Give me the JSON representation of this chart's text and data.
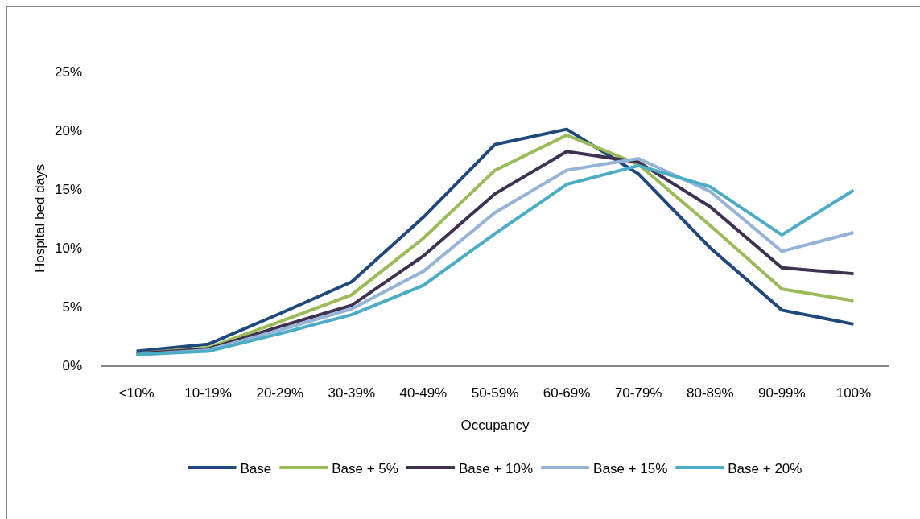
{
  "chart_data": {
    "type": "line",
    "xlabel": "Occupancy",
    "ylabel": "Hospital bed days",
    "categories": [
      "<10%",
      "10-19%",
      "20-29%",
      "30-39%",
      "40-49%",
      "50-59%",
      "60-69%",
      "70-79%",
      "80-89%",
      "90-99%",
      "100%"
    ],
    "series": [
      {
        "name": "Base",
        "color": "#1f497d",
        "values": [
          1.2,
          1.8,
          4.4,
          7.1,
          12.6,
          18.8,
          20.1,
          16.3,
          10.0,
          4.7,
          3.5
        ]
      },
      {
        "name": "Base + 5%",
        "color": "#9bbb59",
        "values": [
          1.0,
          1.5,
          3.7,
          6.0,
          10.8,
          16.6,
          19.6,
          17.1,
          11.9,
          6.5,
          5.5
        ]
      },
      {
        "name": "Base + 10%",
        "color": "#3f3151",
        "values": [
          1.0,
          1.4,
          3.3,
          5.1,
          9.3,
          14.6,
          18.2,
          17.3,
          13.5,
          8.3,
          7.8
        ]
      },
      {
        "name": "Base + 15%",
        "color": "#95b3d7",
        "values": [
          0.9,
          1.3,
          3.0,
          4.8,
          8.0,
          13.0,
          16.6,
          17.6,
          14.8,
          9.7,
          11.3
        ]
      },
      {
        "name": "Base + 20%",
        "color": "#4bacc6",
        "values": [
          0.9,
          1.2,
          2.7,
          4.3,
          6.8,
          11.2,
          15.4,
          17.0,
          15.2,
          11.1,
          14.9
        ]
      }
    ],
    "ylim": [
      0,
      25
    ],
    "yticks": [
      {
        "value": 0,
        "label": "0%"
      },
      {
        "value": 5,
        "label": "5%"
      },
      {
        "value": 10,
        "label": "10%"
      },
      {
        "value": 15,
        "label": "15%"
      },
      {
        "value": 20,
        "label": "20%"
      },
      {
        "value": 25,
        "label": "25%"
      }
    ],
    "grid": false,
    "legend": "bottom",
    "marker": "none",
    "line_style": "solid"
  }
}
